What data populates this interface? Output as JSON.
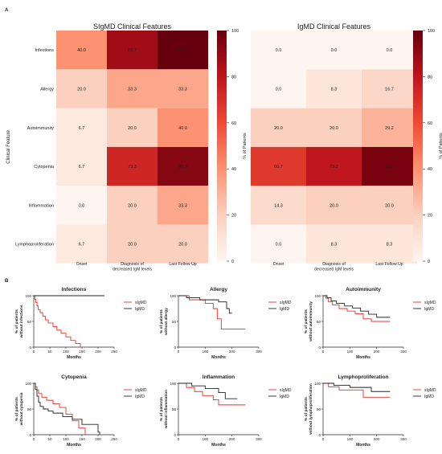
{
  "panel_labels": {
    "a": "A",
    "b": "B"
  },
  "colors": {
    "axis": "#222222",
    "sigmd": "#e8312b",
    "igmd": "#222222"
  },
  "chart_data": [
    {
      "type": "heatmap",
      "title": "SIgMD Clinical Features",
      "ylabel": "Clinical Feature",
      "columns": [
        "Onset",
        "Diagnosis of decreased IgM levels",
        "Last Follow Up"
      ],
      "column_lines": [
        [
          "Onset"
        ],
        [
          "Diagnosis of",
          "decreased IgM levels"
        ],
        [
          "Last Follow Up"
        ]
      ],
      "rows": [
        "Infections",
        "Allergy",
        "Autoimmunity",
        "Cytopenia",
        "Inflammation",
        "Lymphoproliferation"
      ],
      "values": [
        [
          40.0,
          86.7,
          100.0
        ],
        [
          20.0,
          33.3,
          33.3
        ],
        [
          6.7,
          20.0,
          40.0
        ],
        [
          6.7,
          73.3,
          93.3
        ],
        [
          0.0,
          20.0,
          33.3
        ],
        [
          6.7,
          20.0,
          20.0
        ]
      ],
      "colorbar": {
        "label": "% of Patients",
        "range": [
          0,
          100
        ],
        "ticks": [
          0,
          20,
          40,
          60,
          80,
          100
        ]
      }
    },
    {
      "type": "heatmap",
      "title": "IgMD Clinical Features",
      "columns": [
        "Onset",
        "Diagnosis of decreased IgM levels",
        "Last Follow Up"
      ],
      "column_lines": [
        [
          "Onset"
        ],
        [
          "Diagnosis of",
          "decreased IgM levels"
        ],
        [
          "Last Follow Up"
        ]
      ],
      "values": [
        [
          0.0,
          0.0,
          0.0
        ],
        [
          0.0,
          8.3,
          16.7
        ],
        [
          20.0,
          20.0,
          29.2
        ],
        [
          66.7,
          79.2,
          95.8
        ],
        [
          14.3,
          20.0,
          20.0
        ],
        [
          0.0,
          8.3,
          8.3
        ]
      ],
      "colorbar": {
        "label": "% of Patients",
        "range": [
          0,
          100
        ],
        "ticks": [
          0,
          20,
          40,
          60,
          80,
          100
        ]
      }
    },
    {
      "type": "line",
      "title": "Infections",
      "ylabel_lines": [
        "% of patients",
        "without infections"
      ],
      "xlabel": "Months",
      "xlim": [
        0,
        250
      ],
      "ylim": [
        0,
        100
      ],
      "xticks": [
        0,
        50,
        100,
        150,
        200,
        250
      ],
      "yticks": [
        0,
        50,
        100
      ],
      "series": [
        {
          "name": "sIgMD",
          "x": [
            0,
            3,
            6,
            10,
            14,
            20,
            28,
            36,
            45,
            60,
            72,
            85,
            100,
            115,
            130,
            145,
            150
          ],
          "y": [
            100,
            93,
            87,
            80,
            73,
            67,
            60,
            53,
            47,
            40,
            33,
            27,
            20,
            13,
            7,
            0,
            0
          ]
        },
        {
          "name": "IgMD",
          "x": [
            0,
            220
          ],
          "y": [
            100,
            100
          ]
        }
      ]
    },
    {
      "type": "line",
      "title": "Allergy",
      "ylabel_lines": [
        "% of patients",
        "without allergy"
      ],
      "xlabel": "Months",
      "xlim": [
        0,
        300
      ],
      "ylim": [
        0,
        100
      ],
      "xticks": [
        0,
        100,
        200,
        300
      ],
      "yticks": [
        0,
        50,
        100
      ],
      "series": [
        {
          "name": "sIgMD",
          "x": [
            0,
            40,
            100,
            130,
            145,
            160,
            250
          ],
          "y": [
            100,
            92,
            85,
            75,
            55,
            35,
            35
          ]
        },
        {
          "name": "IgMD",
          "x": [
            0,
            30,
            80,
            150,
            180,
            190,
            200
          ],
          "y": [
            100,
            96,
            92,
            88,
            75,
            66,
            66
          ]
        }
      ]
    },
    {
      "type": "line",
      "title": "Autoimmunity",
      "ylabel_lines": [
        "% of patients",
        "without autoimmunity"
      ],
      "xlabel": "Months",
      "xlim": [
        0,
        300
      ],
      "ylim": [
        0,
        100
      ],
      "xticks": [
        0,
        100,
        200,
        300
      ],
      "yticks": [
        0,
        50,
        100
      ],
      "series": [
        {
          "name": "sIgMD",
          "x": [
            0,
            10,
            20,
            35,
            60,
            90,
            120,
            150,
            180,
            250
          ],
          "y": [
            100,
            95,
            88,
            82,
            75,
            70,
            65,
            55,
            50,
            50
          ]
        },
        {
          "name": "IgMD",
          "x": [
            0,
            15,
            30,
            50,
            80,
            110,
            140,
            170,
            200,
            250
          ],
          "y": [
            100,
            96,
            90,
            85,
            80,
            76,
            70,
            64,
            58,
            58
          ]
        }
      ]
    },
    {
      "type": "line",
      "title": "Cytopenia",
      "ylabel_lines": [
        "% of patients",
        "without cytopenia"
      ],
      "xlabel": "Months",
      "xlim": [
        0,
        250
      ],
      "ylim": [
        0,
        100
      ],
      "xticks": [
        0,
        50,
        100,
        150,
        200,
        250
      ],
      "yticks": [
        0,
        50,
        100
      ],
      "series": [
        {
          "name": "sIgMD",
          "x": [
            0,
            5,
            10,
            15,
            25,
            40,
            60,
            80,
            100,
            120,
            140,
            160
          ],
          "y": [
            100,
            93,
            87,
            80,
            73,
            67,
            60,
            53,
            40,
            27,
            13,
            0
          ]
        },
        {
          "name": "IgMD",
          "x": [
            0,
            5,
            10,
            15,
            20,
            30,
            45,
            60,
            90,
            120,
            150,
            200,
            205
          ],
          "y": [
            100,
            88,
            75,
            63,
            55,
            50,
            46,
            42,
            35,
            30,
            20,
            5,
            0
          ]
        }
      ]
    },
    {
      "type": "line",
      "title": "Inflammation",
      "ylabel_lines": [
        "% of patients",
        "without inflammation"
      ],
      "xlabel": "Months",
      "xlim": [
        0,
        300
      ],
      "ylim": [
        0,
        100
      ],
      "xticks": [
        0,
        100,
        200,
        300
      ],
      "yticks": [
        0,
        50,
        100
      ],
      "series": [
        {
          "name": "sIgMD",
          "x": [
            0,
            30,
            60,
            90,
            130,
            150,
            250
          ],
          "y": [
            100,
            92,
            84,
            76,
            68,
            58,
            58
          ]
        },
        {
          "name": "IgMD",
          "x": [
            0,
            50,
            100,
            150,
            175,
            220
          ],
          "y": [
            100,
            95,
            90,
            82,
            70,
            70
          ]
        }
      ]
    },
    {
      "type": "line",
      "title": "Lymphoproliferation",
      "ylabel_lines": [
        "% of patients",
        "without lymphoproliferation"
      ],
      "xlabel": "Months",
      "xlim": [
        0,
        300
      ],
      "ylim": [
        0,
        100
      ],
      "xticks": [
        0,
        100,
        200,
        300
      ],
      "yticks": [
        0,
        50,
        100
      ],
      "series": [
        {
          "name": "sIgMD",
          "x": [
            0,
            20,
            60,
            150,
            250
          ],
          "y": [
            100,
            93,
            87,
            73,
            73
          ]
        },
        {
          "name": "IgMD",
          "x": [
            0,
            40,
            100,
            180,
            250
          ],
          "y": [
            100,
            96,
            92,
            84,
            84
          ]
        }
      ]
    }
  ]
}
